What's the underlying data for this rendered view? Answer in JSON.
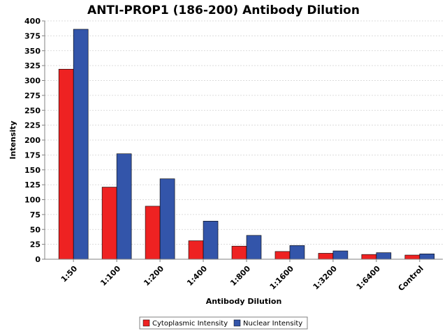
{
  "chart_data": {
    "type": "bar",
    "title": "ANTI-PROP1 (186-200) Antibody Dilution",
    "xlabel": "Antibody Dilution",
    "ylabel": "Intensity",
    "categories": [
      "1:50",
      "1:100",
      "1:200",
      "1:400",
      "1:800",
      "1:1600",
      "1:3200",
      "1:6400",
      "Control"
    ],
    "series": [
      {
        "name": "Cytoplasmic Intensity",
        "color": "#ee2222",
        "values": [
          319,
          121,
          89,
          31,
          22,
          13,
          10,
          8,
          7
        ]
      },
      {
        "name": "Nuclear Intensity",
        "color": "#3355aa",
        "values": [
          386,
          177,
          135,
          64,
          40,
          23,
          14,
          11,
          9
        ]
      }
    ],
    "ylim": [
      0,
      400
    ],
    "yticks": [
      0,
      25,
      50,
      75,
      100,
      125,
      150,
      175,
      200,
      225,
      250,
      275,
      300,
      325,
      350,
      375,
      400
    ],
    "grid": true,
    "legend_position": "bottom"
  }
}
